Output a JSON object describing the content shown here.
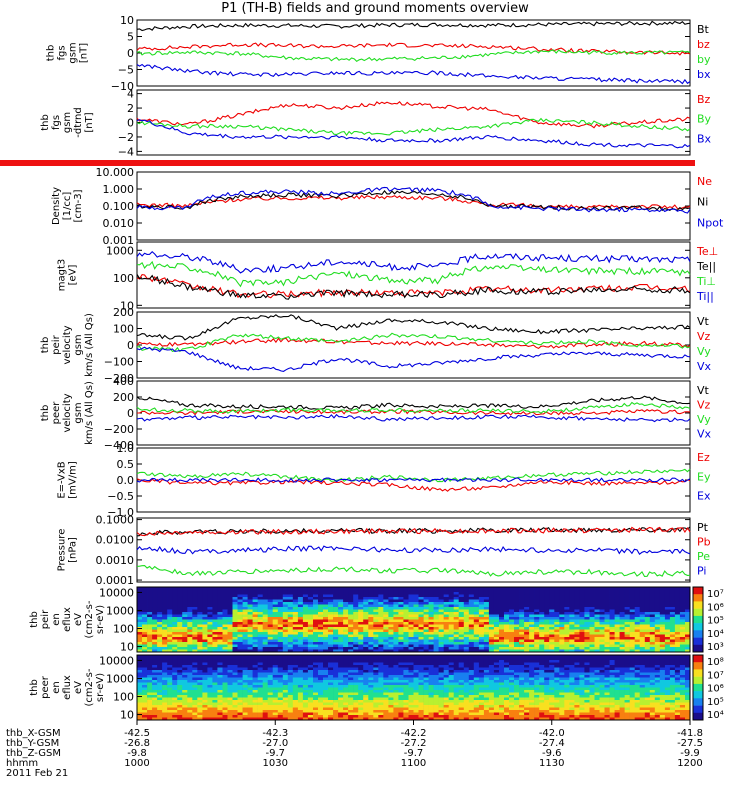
{
  "title": "P1 (TH-B) fields and ground moments overview",
  "date": "2011 Feb 21",
  "colors": {
    "black": "#000000",
    "red": "#ee0000",
    "green": "#22dd22",
    "blue": "#0000dd"
  },
  "chart_data": [
    {
      "type": "line",
      "panel": "fgs",
      "ylabel": [
        "thb",
        "fgs",
        "gsm",
        "[nT]"
      ],
      "ylim": [
        -10,
        10
      ],
      "log": false,
      "ticks": [
        -10,
        -5,
        0,
        5,
        10
      ],
      "tick_labels": [
        "−10",
        "−5",
        "0",
        "5",
        "10"
      ],
      "series": [
        {
          "name": "Bt",
          "color": "black",
          "values": [
            7.2,
            8.0,
            8.4,
            8.3,
            8.1,
            8.5,
            8.6,
            8.4,
            8.6,
            8.8,
            9.0,
            9.1
          ]
        },
        {
          "name": "bz",
          "color": "red",
          "values": [
            1.2,
            1.8,
            2.6,
            2.2,
            2.0,
            2.5,
            2.2,
            2.0,
            1.2,
            0.5,
            0.2,
            -0.2
          ]
        },
        {
          "name": "by",
          "color": "green",
          "values": [
            -0.2,
            0.2,
            -0.1,
            -1.5,
            -2.0,
            -1.8,
            -1.5,
            -0.5,
            0.5,
            0.2,
            0.0,
            0.1
          ]
        },
        {
          "name": "bx",
          "color": "blue",
          "values": [
            -3.5,
            -5.5,
            -6.5,
            -6.5,
            -6.0,
            -6.2,
            -6.0,
            -7.0,
            -7.5,
            -8.0,
            -8.5,
            -8.7
          ]
        }
      ]
    },
    {
      "type": "line",
      "panel": "fgs-dtrend",
      "ylabel": [
        "thb",
        "fgs",
        "gsm",
        "-dtrnd",
        "[nT]"
      ],
      "ylim": [
        -4.5,
        4.5
      ],
      "log": false,
      "ticks": [
        -4,
        -2,
        0,
        2,
        4
      ],
      "tick_labels": [
        "−4",
        "−2",
        "0",
        "2",
        "4"
      ],
      "series": [
        {
          "name": "Bz",
          "color": "red",
          "values": [
            0.5,
            -0.3,
            1.0,
            2.5,
            2.0,
            2.8,
            2.2,
            1.8,
            0.0,
            -0.5,
            0.0,
            0.5
          ]
        },
        {
          "name": "By",
          "color": "green",
          "values": [
            0.0,
            -0.5,
            -0.5,
            -1.0,
            -1.5,
            -1.5,
            -1.0,
            -0.5,
            0.3,
            0.0,
            -0.5,
            -1.0
          ]
        },
        {
          "name": "Bx",
          "color": "blue",
          "values": [
            0.5,
            -1.5,
            -2.0,
            -2.0,
            -2.0,
            -2.5,
            -2.5,
            -2.0,
            -2.5,
            -3.0,
            -3.2,
            -3.3
          ]
        }
      ]
    },
    {
      "type": "line",
      "panel": "density",
      "ylabel": [
        "Density",
        "[1/cc]",
        "[cm-3]"
      ],
      "ylim": [
        0.001,
        10
      ],
      "log": true,
      "ticks": [
        0.001,
        0.01,
        0.1,
        1,
        10
      ],
      "tick_labels": [
        "0.001",
        "0.010",
        "0.100",
        "1.000",
        "10.000"
      ],
      "series": [
        {
          "name": "Ne",
          "color": "red",
          "values": [
            0.12,
            0.1,
            0.25,
            0.3,
            0.3,
            0.35,
            0.3,
            0.12,
            0.1,
            0.08,
            0.1,
            0.08
          ]
        },
        {
          "name": "Ni",
          "color": "black",
          "values": [
            0.1,
            0.08,
            0.35,
            0.45,
            0.4,
            0.6,
            0.5,
            0.1,
            0.09,
            0.07,
            0.08,
            0.06
          ]
        },
        {
          "name": "Npot",
          "color": "blue",
          "values": [
            0.08,
            0.08,
            0.6,
            0.7,
            0.5,
            1.0,
            0.8,
            0.1,
            0.07,
            0.06,
            0.06,
            0.05
          ]
        }
      ]
    },
    {
      "type": "line",
      "panel": "temperature",
      "ylabel": [
        "magt3",
        "[eV]"
      ],
      "ylim": [
        8,
        2000
      ],
      "log": true,
      "ticks": [
        10,
        100,
        1000
      ],
      "tick_labels": [
        "10",
        "100",
        "1000"
      ],
      "series": [
        {
          "name": "Te⊥",
          "color": "red",
          "values": [
            120,
            50,
            25,
            25,
            30,
            28,
            28,
            40,
            35,
            40,
            45,
            40
          ]
        },
        {
          "name": "Te||",
          "color": "black",
          "values": [
            110,
            45,
            22,
            22,
            28,
            25,
            25,
            35,
            32,
            35,
            40,
            35
          ]
        },
        {
          "name": "Ti⊥",
          "color": "green",
          "values": [
            300,
            250,
            60,
            70,
            150,
            80,
            80,
            250,
            200,
            180,
            170,
            160
          ]
        },
        {
          "name": "Ti||",
          "color": "blue",
          "values": [
            700,
            600,
            200,
            220,
            400,
            250,
            250,
            650,
            550,
            500,
            480,
            450
          ]
        }
      ]
    },
    {
      "type": "line",
      "panel": "peir-velocity",
      "ylabel": [
        "thb",
        "peir",
        "velocity",
        "gsm",
        "km/s (All Qs)"
      ],
      "ylim": [
        -200,
        200
      ],
      "log": false,
      "ticks": [
        -200,
        -100,
        0,
        100,
        200
      ],
      "tick_labels": [
        "−200",
        "−100",
        "0",
        "100",
        "200"
      ],
      "series": [
        {
          "name": "Vt",
          "color": "black",
          "values": [
            60,
            40,
            160,
            180,
            100,
            150,
            140,
            100,
            80,
            90,
            100,
            110
          ]
        },
        {
          "name": "Vz",
          "color": "red",
          "values": [
            10,
            0,
            20,
            30,
            20,
            10,
            10,
            0,
            -10,
            0,
            10,
            0
          ]
        },
        {
          "name": "Vy",
          "color": "green",
          "values": [
            -20,
            -30,
            60,
            40,
            20,
            60,
            50,
            30,
            10,
            20,
            0,
            -10
          ]
        },
        {
          "name": "Vx",
          "color": "blue",
          "values": [
            -20,
            -40,
            -140,
            -150,
            -80,
            -130,
            -110,
            -80,
            -60,
            -50,
            -60,
            -70
          ]
        }
      ]
    },
    {
      "type": "line",
      "panel": "peer-velocity",
      "ylabel": [
        "thb",
        "peer",
        "velocity",
        "gsm",
        "km/s (All Qs)"
      ],
      "ylim": [
        -400,
        400
      ],
      "log": false,
      "ticks": [
        -400,
        -200,
        0,
        200,
        400
      ],
      "tick_labels": [
        "−400",
        "−200",
        "0",
        "200",
        "400"
      ],
      "series": [
        {
          "name": "Vt",
          "color": "black",
          "values": [
            200,
            100,
            80,
            80,
            60,
            100,
            80,
            90,
            80,
            150,
            200,
            120
          ]
        },
        {
          "name": "Vz",
          "color": "red",
          "values": [
            10,
            0,
            20,
            20,
            10,
            20,
            10,
            0,
            -10,
            0,
            20,
            10
          ]
        },
        {
          "name": "Vy",
          "color": "green",
          "values": [
            50,
            30,
            20,
            40,
            30,
            40,
            30,
            30,
            20,
            60,
            120,
            50
          ]
        },
        {
          "name": "Vx",
          "color": "blue",
          "values": [
            -80,
            -60,
            -50,
            -60,
            -40,
            -80,
            -60,
            -50,
            -50,
            -70,
            -90,
            -80
          ]
        }
      ]
    },
    {
      "type": "line",
      "panel": "efield",
      "ylabel": [
        "E=-VxB",
        "[mV/m]"
      ],
      "ylim": [
        -1,
        1
      ],
      "log": false,
      "ticks": [
        -1,
        -0.5,
        0,
        0.5,
        1
      ],
      "tick_labels": [
        "−1.0",
        "−0.5",
        "0.0",
        "0.5",
        "1.0"
      ],
      "series": [
        {
          "name": "Ez",
          "color": "red",
          "values": [
            0.0,
            -0.1,
            -0.1,
            -0.05,
            -0.1,
            -0.15,
            -0.3,
            -0.25,
            -0.05,
            -0.1,
            -0.1,
            -0.05
          ]
        },
        {
          "name": "Ey",
          "color": "green",
          "values": [
            0.2,
            0.1,
            0.2,
            0.1,
            0.0,
            0.1,
            0.0,
            0.05,
            0.15,
            0.2,
            0.25,
            0.3
          ]
        },
        {
          "name": "Ex",
          "color": "blue",
          "values": [
            0.0,
            0.0,
            0.0,
            0.0,
            0.0,
            0.0,
            0.0,
            0.0,
            0.0,
            0.0,
            0.0,
            0.0
          ]
        }
      ]
    },
    {
      "type": "line",
      "panel": "pressure",
      "ylabel": [
        "Pressure",
        "[nPa]"
      ],
      "ylim": [
        8e-05,
        0.12
      ],
      "log": true,
      "ticks": [
        0.0001,
        0.001,
        0.01,
        0.1
      ],
      "tick_labels": [
        "0.0001",
        "0.0010",
        "0.0100",
        "0.1000"
      ],
      "series": [
        {
          "name": "Pt",
          "color": "black",
          "values": [
            0.02,
            0.025,
            0.026,
            0.026,
            0.027,
            0.028,
            0.028,
            0.029,
            0.03,
            0.031,
            0.032,
            0.033
          ]
        },
        {
          "name": "Pb",
          "color": "red",
          "values": [
            0.02,
            0.024,
            0.025,
            0.025,
            0.026,
            0.027,
            0.027,
            0.028,
            0.029,
            0.03,
            0.031,
            0.032
          ]
        },
        {
          "name": "Pe",
          "color": "green",
          "values": [
            0.0005,
            0.0002,
            0.00025,
            0.0003,
            0.00035,
            0.0003,
            0.0003,
            0.0002,
            0.00025,
            0.00025,
            0.0002,
            0.00022
          ]
        },
        {
          "name": "Pi",
          "color": "blue",
          "values": [
            0.004,
            0.0025,
            0.003,
            0.0035,
            0.004,
            0.003,
            0.003,
            0.0035,
            0.003,
            0.003,
            0.0025,
            0.0025
          ]
        }
      ]
    },
    {
      "type": "heatmap",
      "panel": "peir-spectrogram",
      "ylabel": [
        "thb",
        "peir",
        "en",
        "eflux",
        "eV",
        "(cm2-s-",
        "sr-eV)"
      ],
      "ticks": [
        10,
        100,
        1000,
        10000
      ],
      "tick_labels": [
        "10",
        "100",
        "1000",
        "10000"
      ],
      "colorbar": {
        "ticks": [
          "10³",
          "10⁴",
          "10⁵",
          "10⁶",
          "10⁷"
        ]
      }
    },
    {
      "type": "heatmap",
      "panel": "peer-spectrogram",
      "ylabel": [
        "thb",
        "peer",
        "en",
        "eflux",
        "eV",
        "(cm2-s-",
        "sr-eV)"
      ],
      "ticks": [
        10,
        100,
        1000,
        10000
      ],
      "tick_labels": [
        "10",
        "100",
        "1000",
        "10000"
      ],
      "colorbar": {
        "ticks": [
          "10⁴",
          "10⁵",
          "10⁶",
          "10⁷",
          "10⁸"
        ]
      }
    }
  ],
  "xaxis": {
    "rows": [
      {
        "label": "thb_X-GSM",
        "values": [
          "-42.5",
          "-42.3",
          "-42.2",
          "-42.0",
          "-41.8"
        ]
      },
      {
        "label": "thb_Y-GSM",
        "values": [
          "-26.8",
          "-27.0",
          "-27.2",
          "-27.4",
          "-27.5"
        ]
      },
      {
        "label": "thb_Z-GSM",
        "values": [
          "-9.8",
          "-9.7",
          "-9.7",
          "-9.6",
          "-9.9"
        ]
      },
      {
        "label": "hhmm",
        "values": [
          "1000",
          "1030",
          "1100",
          "1130",
          "1200"
        ]
      }
    ]
  }
}
